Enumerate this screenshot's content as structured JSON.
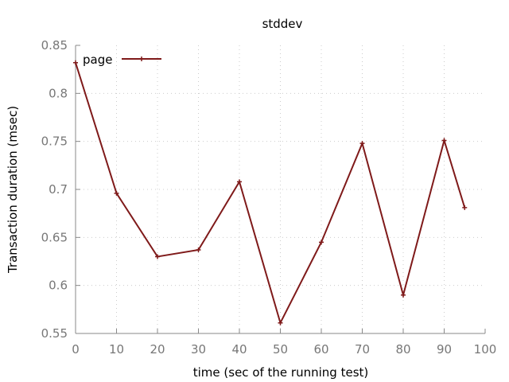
{
  "chart_data": {
    "type": "line",
    "title": "stddev",
    "xlabel": "time (sec of the running test)",
    "ylabel": "Transaction duration (msec)",
    "xlim": [
      0,
      100
    ],
    "ylim": [
      0.55,
      0.85
    ],
    "xticks": [
      0,
      10,
      20,
      30,
      40,
      50,
      60,
      70,
      80,
      90,
      100
    ],
    "yticks": [
      0.55,
      0.6,
      0.65,
      0.7,
      0.75,
      0.8,
      0.85
    ],
    "grid": true,
    "legend_position": "top-left",
    "series": [
      {
        "name": "page",
        "color": "#7f1a1a",
        "x": [
          0,
          10,
          20,
          30,
          40,
          50,
          60,
          70,
          80,
          90,
          95
        ],
        "y": [
          0.832,
          0.696,
          0.63,
          0.637,
          0.708,
          0.561,
          0.645,
          0.748,
          0.59,
          0.751,
          0.681
        ]
      }
    ]
  }
}
